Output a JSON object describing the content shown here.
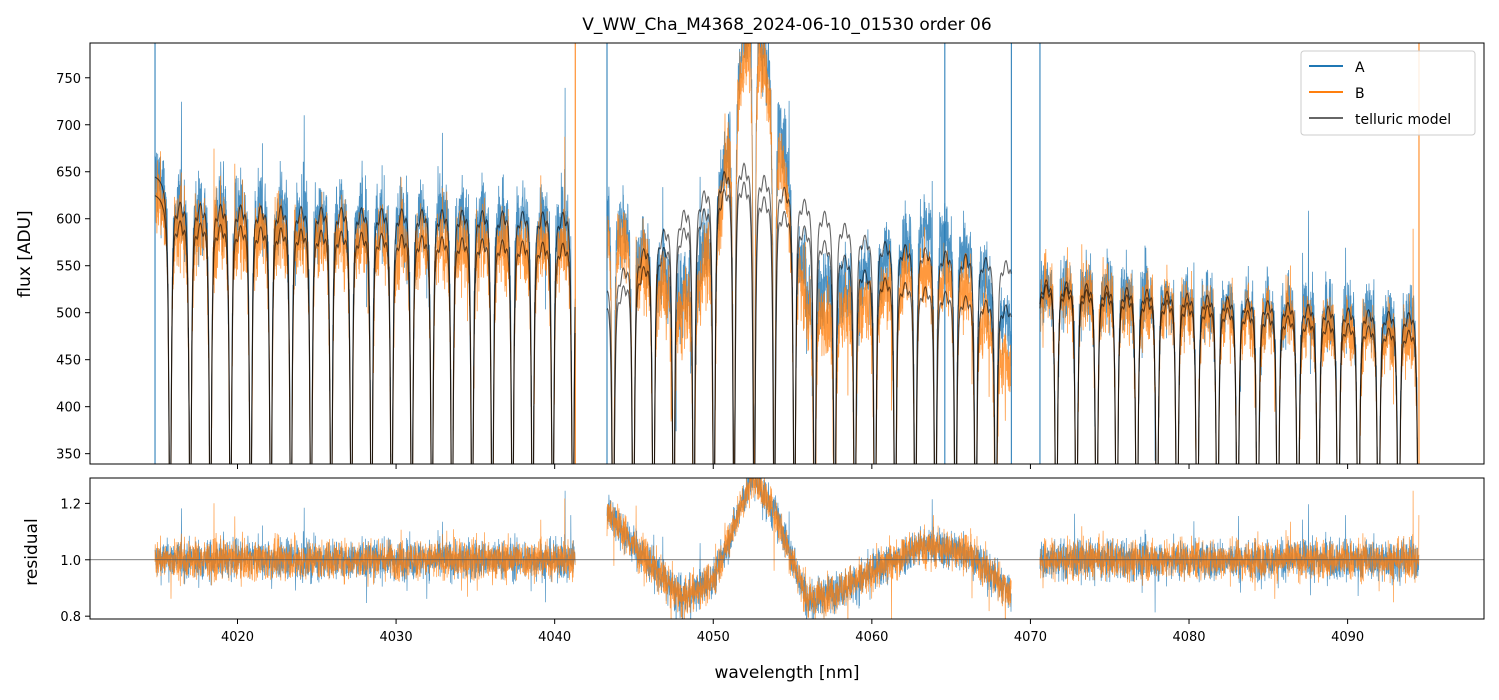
{
  "chart_data": [
    {
      "type": "line",
      "title": "V_WW_Cha_M4368_2024-06-10_01530  order 06",
      "xlabel": "",
      "ylabel": "flux [ADU]",
      "xlim": [
        4010.7,
        4098.6
      ],
      "ylim": [
        339,
        787
      ],
      "yticks": [
        350,
        400,
        450,
        500,
        550,
        600,
        650,
        700,
        750
      ],
      "xticks": [
        4020,
        4030,
        4040,
        4050,
        4060,
        4070,
        4080,
        4090
      ],
      "legend": {
        "placement": "top-right",
        "entries": [
          "A",
          "B",
          "telluric model"
        ]
      },
      "segments_nm": [
        [
          4014.8,
          4041.3
        ],
        [
          4043.3,
          4068.8
        ],
        [
          4070.6,
          4094.5
        ]
      ],
      "telluric_line_spacing_nm": 1.27,
      "telluric_line_depth": 0.5,
      "continuum": {
        "A": [
          [
            4014.8,
            650
          ],
          [
            4041.3,
            640
          ],
          [
            4043.3,
            560
          ],
          [
            4051.5,
            700
          ],
          [
            4060,
            610
          ],
          [
            4068.8,
            585
          ],
          [
            4070.6,
            565
          ],
          [
            4094.5,
            525
          ]
        ],
        "B": [
          [
            4014.8,
            630
          ],
          [
            4041.3,
            605
          ],
          [
            4043.3,
            540
          ],
          [
            4051.5,
            680
          ],
          [
            4060,
            570
          ],
          [
            4068.8,
            535
          ],
          [
            4070.6,
            560
          ],
          [
            4094.5,
            505
          ]
        ]
      },
      "spikes": {
        "A": [
          4014.8,
          4043.3,
          4064.6,
          4068.8,
          4070.6
        ],
        "B": [
          4041.3,
          4094.5
        ]
      },
      "series": [
        {
          "name": "A",
          "color": "#1f77b4"
        },
        {
          "name": "B",
          "color": "#ff7f0e"
        },
        {
          "name": "telluric model",
          "color": "#555555"
        }
      ]
    },
    {
      "type": "line",
      "xlabel": "wavelength [nm]",
      "ylabel": "residual",
      "xlim": [
        4010.7,
        4098.6
      ],
      "ylim": [
        0.79,
        1.29
      ],
      "yticks": [
        0.8,
        1.0,
        1.2
      ],
      "xticks": [
        4020,
        4030,
        4040,
        4050,
        4060,
        4070,
        4080,
        4090
      ],
      "reference_line": 1.0,
      "residual_shape": [
        [
          4043.3,
          1.18
        ],
        [
          4045,
          1.05
        ],
        [
          4048,
          0.86
        ],
        [
          4050,
          0.93
        ],
        [
          4052.5,
          1.3
        ],
        [
          4054,
          1.15
        ],
        [
          4056,
          0.85
        ],
        [
          4059,
          0.92
        ],
        [
          4063,
          1.05
        ],
        [
          4066,
          1.03
        ],
        [
          4068.8,
          0.88
        ]
      ],
      "noise_sigma": 0.035,
      "series": [
        {
          "name": "A",
          "color": "#1f77b4"
        },
        {
          "name": "B",
          "color": "#ff7f0e"
        }
      ]
    }
  ]
}
